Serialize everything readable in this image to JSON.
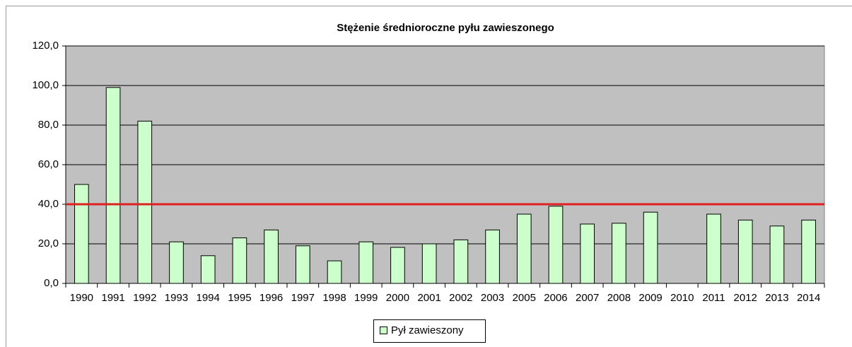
{
  "chart_data": {
    "type": "bar",
    "title": "Stężenie średnioroczne pyłu zawieszonego",
    "categories": [
      "1990",
      "1991",
      "1992",
      "1993",
      "1994",
      "1995",
      "1996",
      "1997",
      "1998",
      "1999",
      "2000",
      "2001",
      "2002",
      "2003",
      "2005",
      "2006",
      "2007",
      "2008",
      "2009",
      "2010",
      "2011",
      "2012",
      "2013",
      "2014"
    ],
    "series": [
      {
        "name": "Pył zawieszony",
        "color": "#ccffcc",
        "values": [
          50,
          99,
          82,
          21,
          14,
          23,
          27,
          19,
          11.4,
          21,
          18.2,
          20,
          22,
          27,
          35,
          39,
          30,
          30.4,
          36,
          null,
          35,
          32,
          29,
          32
        ]
      }
    ],
    "ylim": [
      0,
      120
    ],
    "yticks": [
      {
        "value": 0,
        "label": "0,0"
      },
      {
        "value": 20,
        "label": "20,0"
      },
      {
        "value": 40,
        "label": "40,0"
      },
      {
        "value": 60,
        "label": "60,0"
      },
      {
        "value": 80,
        "label": "80,0"
      },
      {
        "value": 100,
        "label": "100,0"
      },
      {
        "value": 120,
        "label": "120,0"
      }
    ],
    "grid": true,
    "reference_line": {
      "value": 40,
      "color": "#e02020"
    },
    "legend": "bottom"
  }
}
